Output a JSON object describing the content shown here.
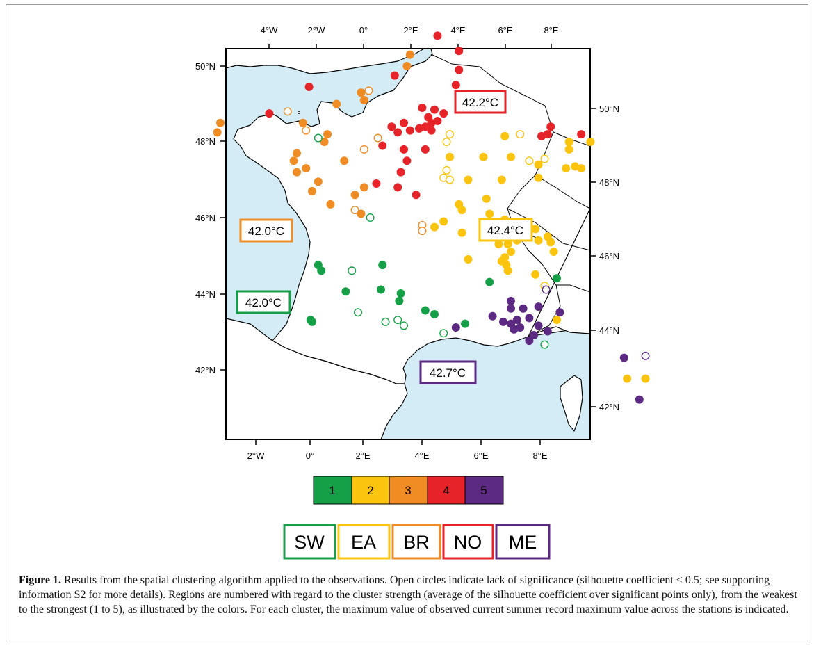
{
  "colors": {
    "cluster1": "#15a048",
    "cluster2": "#fbc40e",
    "cluster3": "#f08c24",
    "cluster4": "#e62329",
    "cluster5": "#5c2a82",
    "sea": "#d3ecf5",
    "land": "#ffffff"
  },
  "map": {
    "top_ticks": [
      "4°W",
      "2°W",
      "0°",
      "2°E",
      "4°E",
      "6°E",
      "8°E"
    ],
    "bottom_ticks": [
      "2°W",
      "0°",
      "2°E",
      "4°E",
      "6°E",
      "8°E"
    ],
    "left_ticks": [
      "50°N",
      "48°N",
      "46°N",
      "44°N",
      "42°N"
    ],
    "right_ticks": [
      "50°N",
      "48°N",
      "46°N",
      "44°N",
      "42°N"
    ]
  },
  "cluster_labels": [
    {
      "text": "42.2°C",
      "cluster": 4
    },
    {
      "text": "42.0°C",
      "cluster": 3
    },
    {
      "text": "42.4°C",
      "cluster": 2
    },
    {
      "text": "42.0°C",
      "cluster": 1
    },
    {
      "text": "42.7°C",
      "cluster": 5
    }
  ],
  "legend": {
    "numbers": [
      "1",
      "2",
      "3",
      "4",
      "5"
    ]
  },
  "regions": [
    {
      "code": "SW",
      "cluster": 1
    },
    {
      "code": "EA",
      "cluster": 2
    },
    {
      "code": "BR",
      "cluster": 3
    },
    {
      "code": "NO",
      "cluster": 4
    },
    {
      "code": "ME",
      "cluster": 5
    }
  ],
  "caption": {
    "label": "Figure 1.",
    "text": " Results from the spatial clustering algorithm applied to the observations. Open circles indicate lack of significance (silhouette coefficient < 0.5; see supporting information S2 for more details). Regions are numbered with regard to the cluster strength (average of the silhouette coefficient over significant points only), from the weakest to the strongest (1 to 5), as illustrated by the colors. For each cluster, the maximum value of observed current summer record maximum value across the stations is indicated."
  },
  "stations": [
    {
      "lon": 2.6,
      "lat": 51.0,
      "cluster": 4,
      "open": false
    },
    {
      "lon": 3.3,
      "lat": 50.6,
      "cluster": 4,
      "open": false
    },
    {
      "lon": 3.3,
      "lat": 50.1,
      "cluster": 4,
      "open": false
    },
    {
      "lon": 3.2,
      "lat": 49.7,
      "cluster": 4,
      "open": false
    },
    {
      "lon": 1.7,
      "lat": 50.5,
      "cluster": 3,
      "open": false
    },
    {
      "lon": 1.6,
      "lat": 50.2,
      "cluster": 3,
      "open": false
    },
    {
      "lon": 1.2,
      "lat": 49.95,
      "cluster": 4,
      "open": false
    },
    {
      "lon": -1.6,
      "lat": 49.65,
      "cluster": 4,
      "open": false
    },
    {
      "lon": 0.1,
      "lat": 49.5,
      "cluster": 3,
      "open": false
    },
    {
      "lon": 0.2,
      "lat": 49.3,
      "cluster": 3,
      "open": false
    },
    {
      "lon": 0.35,
      "lat": 49.55,
      "cluster": 3,
      "open": true
    },
    {
      "lon": -0.7,
      "lat": 49.2,
      "cluster": 3,
      "open": false
    },
    {
      "lon": -2.3,
      "lat": 49.0,
      "cluster": 3,
      "open": true
    },
    {
      "lon": -2.9,
      "lat": 48.95,
      "cluster": 4,
      "open": false
    },
    {
      "lon": -4.5,
      "lat": 48.7,
      "cluster": 3,
      "open": false
    },
    {
      "lon": -4.6,
      "lat": 48.45,
      "cluster": 3,
      "open": false
    },
    {
      "lon": -1.8,
      "lat": 48.7,
      "cluster": 3,
      "open": false
    },
    {
      "lon": -1.7,
      "lat": 48.5,
      "cluster": 3,
      "open": true
    },
    {
      "lon": 2.1,
      "lat": 49.1,
      "cluster": 4,
      "open": false
    },
    {
      "lon": 2.5,
      "lat": 49.05,
      "cluster": 4,
      "open": false
    },
    {
      "lon": 2.3,
      "lat": 48.85,
      "cluster": 4,
      "open": false
    },
    {
      "lon": 2.6,
      "lat": 48.75,
      "cluster": 4,
      "open": false
    },
    {
      "lon": 2.8,
      "lat": 48.95,
      "cluster": 4,
      "open": false
    },
    {
      "lon": 2.4,
      "lat": 48.7,
      "cluster": 4,
      "open": false
    },
    {
      "lon": 2.2,
      "lat": 48.6,
      "cluster": 4,
      "open": false
    },
    {
      "lon": 1.5,
      "lat": 48.7,
      "cluster": 4,
      "open": false
    },
    {
      "lon": 1.1,
      "lat": 48.6,
      "cluster": 4,
      "open": false
    },
    {
      "lon": 1.3,
      "lat": 48.45,
      "cluster": 4,
      "open": false
    },
    {
      "lon": 1.7,
      "lat": 48.5,
      "cluster": 4,
      "open": false
    },
    {
      "lon": 2.0,
      "lat": 48.55,
      "cluster": 4,
      "open": false
    },
    {
      "lon": 2.4,
      "lat": 48.5,
      "cluster": 4,
      "open": false
    },
    {
      "lon": 3.0,
      "lat": 48.4,
      "cluster": 2,
      "open": true
    },
    {
      "lon": 2.9,
      "lat": 48.2,
      "cluster": 2,
      "open": true
    },
    {
      "lon": 0.8,
      "lat": 48.1,
      "cluster": 4,
      "open": false
    },
    {
      "lon": 1.5,
      "lat": 48.0,
      "cluster": 4,
      "open": false
    },
    {
      "lon": 2.2,
      "lat": 48.0,
      "cluster": 4,
      "open": false
    },
    {
      "lon": 3.0,
      "lat": 47.8,
      "cluster": 2,
      "open": false
    },
    {
      "lon": 4.3,
      "lat": 49.3,
      "cluster": 4,
      "open": false
    },
    {
      "lon": 4.7,
      "lat": 49.35,
      "cluster": 4,
      "open": false
    },
    {
      "lon": 6.3,
      "lat": 48.6,
      "cluster": 4,
      "open": false
    },
    {
      "lon": 6.0,
      "lat": 48.35,
      "cluster": 4,
      "open": false
    },
    {
      "lon": 6.2,
      "lat": 48.4,
      "cluster": 4,
      "open": false
    },
    {
      "lon": 7.3,
      "lat": 48.4,
      "cluster": 4,
      "open": false
    },
    {
      "lon": 4.8,
      "lat": 48.35,
      "cluster": 2,
      "open": false
    },
    {
      "lon": 5.3,
      "lat": 48.4,
      "cluster": 2,
      "open": true
    },
    {
      "lon": 6.9,
      "lat": 48.2,
      "cluster": 2,
      "open": false
    },
    {
      "lon": 6.9,
      "lat": 48.0,
      "cluster": 2,
      "open": false
    },
    {
      "lon": 7.6,
      "lat": 48.2,
      "cluster": 2,
      "open": false
    },
    {
      "lon": 4.1,
      "lat": 47.8,
      "cluster": 2,
      "open": false
    },
    {
      "lon": 5.0,
      "lat": 47.8,
      "cluster": 2,
      "open": false
    },
    {
      "lon": 5.6,
      "lat": 47.7,
      "cluster": 2,
      "open": true
    },
    {
      "lon": 6.1,
      "lat": 47.75,
      "cluster": 2,
      "open": true
    },
    {
      "lon": 5.9,
      "lat": 47.6,
      "cluster": 2,
      "open": false
    },
    {
      "lon": 6.8,
      "lat": 47.5,
      "cluster": 2,
      "open": false
    },
    {
      "lon": 7.1,
      "lat": 47.55,
      "cluster": 2,
      "open": false
    },
    {
      "lon": 7.3,
      "lat": 47.5,
      "cluster": 2,
      "open": false
    },
    {
      "lon": 2.9,
      "lat": 47.45,
      "cluster": 2,
      "open": true
    },
    {
      "lon": 2.8,
      "lat": 47.25,
      "cluster": 2,
      "open": true
    },
    {
      "lon": 3.0,
      "lat": 47.2,
      "cluster": 2,
      "open": true
    },
    {
      "lon": 3.6,
      "lat": 47.2,
      "cluster": 2,
      "open": false
    },
    {
      "lon": 4.7,
      "lat": 47.2,
      "cluster": 2,
      "open": false
    },
    {
      "lon": 5.9,
      "lat": 47.25,
      "cluster": 2,
      "open": false
    },
    {
      "lon": 1.6,
      "lat": 47.7,
      "cluster": 4,
      "open": false
    },
    {
      "lon": 1.4,
      "lat": 47.4,
      "cluster": 4,
      "open": false
    },
    {
      "lon": 1.3,
      "lat": 47.0,
      "cluster": 4,
      "open": false
    },
    {
      "lon": 1.9,
      "lat": 46.8,
      "cluster": 4,
      "open": false
    },
    {
      "lon": 0.6,
      "lat": 47.1,
      "cluster": 4,
      "open": false
    },
    {
      "lon": 0.2,
      "lat": 47.0,
      "cluster": 3,
      "open": false
    },
    {
      "lon": -0.1,
      "lat": 46.8,
      "cluster": 3,
      "open": false
    },
    {
      "lon": -0.45,
      "lat": 47.7,
      "cluster": 3,
      "open": false
    },
    {
      "lon": 0.65,
      "lat": 48.3,
      "cluster": 3,
      "open": true
    },
    {
      "lon": 0.2,
      "lat": 48.0,
      "cluster": 3,
      "open": true
    },
    {
      "lon": -1.7,
      "lat": 47.5,
      "cluster": 3,
      "open": false
    },
    {
      "lon": -1.3,
      "lat": 47.15,
      "cluster": 3,
      "open": false
    },
    {
      "lon": -2.0,
      "lat": 47.9,
      "cluster": 3,
      "open": false
    },
    {
      "lon": -2.1,
      "lat": 47.7,
      "cluster": 3,
      "open": false
    },
    {
      "lon": -2.0,
      "lat": 47.4,
      "cluster": 3,
      "open": false
    },
    {
      "lon": -1.0,
      "lat": 48.4,
      "cluster": 3,
      "open": false
    },
    {
      "lon": -1.1,
      "lat": 48.2,
      "cluster": 3,
      "open": false
    },
    {
      "lon": -1.5,
      "lat": 46.9,
      "cluster": 3,
      "open": false
    },
    {
      "lon": -0.9,
      "lat": 46.55,
      "cluster": 3,
      "open": false
    },
    {
      "lon": -0.1,
      "lat": 46.4,
      "cluster": 3,
      "open": true
    },
    {
      "lon": 0.1,
      "lat": 46.3,
      "cluster": 3,
      "open": false
    },
    {
      "lon": 0.4,
      "lat": 46.2,
      "cluster": 1,
      "open": true
    },
    {
      "lon": 2.1,
      "lat": 46.0,
      "cluster": 3,
      "open": true
    },
    {
      "lon": 2.1,
      "lat": 45.85,
      "cluster": 3,
      "open": true
    },
    {
      "lon": 2.5,
      "lat": 45.95,
      "cluster": 2,
      "open": false
    },
    {
      "lon": 2.8,
      "lat": 46.1,
      "cluster": 2,
      "open": false
    },
    {
      "lon": 3.3,
      "lat": 46.55,
      "cluster": 2,
      "open": false
    },
    {
      "lon": 3.4,
      "lat": 46.4,
      "cluster": 2,
      "open": false
    },
    {
      "lon": 3.4,
      "lat": 45.8,
      "cluster": 2,
      "open": false
    },
    {
      "lon": 4.2,
      "lat": 46.7,
      "cluster": 2,
      "open": false
    },
    {
      "lon": 4.3,
      "lat": 46.3,
      "cluster": 2,
      "open": false
    },
    {
      "lon": 4.8,
      "lat": 46.15,
      "cluster": 2,
      "open": false
    },
    {
      "lon": 4.1,
      "lat": 45.7,
      "cluster": 2,
      "open": false
    },
    {
      "lon": 4.6,
      "lat": 45.5,
      "cluster": 2,
      "open": false
    },
    {
      "lon": 4.9,
      "lat": 45.5,
      "cluster": 2,
      "open": false
    },
    {
      "lon": 5.2,
      "lat": 45.6,
      "cluster": 2,
      "open": false
    },
    {
      "lon": 5.8,
      "lat": 45.9,
      "cluster": 2,
      "open": false
    },
    {
      "lon": 5.9,
      "lat": 45.6,
      "cluster": 2,
      "open": false
    },
    {
      "lon": 6.2,
      "lat": 45.7,
      "cluster": 2,
      "open": false
    },
    {
      "lon": 6.3,
      "lat": 45.55,
      "cluster": 2,
      "open": false
    },
    {
      "lon": 6.4,
      "lat": 45.3,
      "cluster": 2,
      "open": false
    },
    {
      "lon": 5.0,
      "lat": 45.3,
      "cluster": 2,
      "open": false
    },
    {
      "lon": 4.8,
      "lat": 45.15,
      "cluster": 2,
      "open": false
    },
    {
      "lon": 4.7,
      "lat": 45.05,
      "cluster": 2,
      "open": false
    },
    {
      "lon": 4.85,
      "lat": 44.95,
      "cluster": 2,
      "open": false
    },
    {
      "lon": 3.6,
      "lat": 45.1,
      "cluster": 2,
      "open": false
    },
    {
      "lon": 4.9,
      "lat": 44.8,
      "cluster": 2,
      "open": false
    },
    {
      "lon": 5.8,
      "lat": 44.7,
      "cluster": 2,
      "open": false
    },
    {
      "lon": 6.1,
      "lat": 44.4,
      "cluster": 2,
      "open": true
    },
    {
      "lon": 6.15,
      "lat": 44.3,
      "cluster": 5,
      "open": true
    },
    {
      "lon": 6.5,
      "lat": 44.6,
      "cluster": 1,
      "open": false
    },
    {
      "lon": 4.3,
      "lat": 44.5,
      "cluster": 1,
      "open": false
    },
    {
      "lon": 5.0,
      "lat": 44.0,
      "cluster": 5,
      "open": false
    },
    {
      "lon": 5.0,
      "lat": 43.8,
      "cluster": 5,
      "open": false
    },
    {
      "lon": 5.4,
      "lat": 43.8,
      "cluster": 5,
      "open": false
    },
    {
      "lon": 5.9,
      "lat": 43.85,
      "cluster": 5,
      "open": false
    },
    {
      "lon": 6.6,
      "lat": 43.7,
      "cluster": 5,
      "open": false
    },
    {
      "lon": 4.4,
      "lat": 43.6,
      "cluster": 5,
      "open": false
    },
    {
      "lon": 4.75,
      "lat": 43.45,
      "cluster": 5,
      "open": false
    },
    {
      "lon": 5.2,
      "lat": 43.5,
      "cluster": 5,
      "open": false
    },
    {
      "lon": 5.6,
      "lat": 43.55,
      "cluster": 5,
      "open": false
    },
    {
      "lon": 5.9,
      "lat": 43.35,
      "cluster": 5,
      "open": false
    },
    {
      "lon": 6.2,
      "lat": 43.2,
      "cluster": 5,
      "open": false
    },
    {
      "lon": 5.0,
      "lat": 43.4,
      "cluster": 5,
      "open": false
    },
    {
      "lon": 5.1,
      "lat": 43.25,
      "cluster": 5,
      "open": false
    },
    {
      "lon": 5.3,
      "lat": 43.3,
      "cluster": 5,
      "open": false
    },
    {
      "lon": 5.75,
      "lat": 43.1,
      "cluster": 5,
      "open": false
    },
    {
      "lon": 3.2,
      "lat": 43.3,
      "cluster": 5,
      "open": false
    },
    {
      "lon": 3.5,
      "lat": 43.4,
      "cluster": 1,
      "open": false
    },
    {
      "lon": 5.6,
      "lat": 42.95,
      "cluster": 5,
      "open": false
    },
    {
      "lon": 6.1,
      "lat": 42.85,
      "cluster": 1,
      "open": true
    },
    {
      "lon": 6.5,
      "lat": 43.5,
      "cluster": 2,
      "open": false
    },
    {
      "lon": 8.7,
      "lat": 42.5,
      "cluster": 5,
      "open": false
    },
    {
      "lon": 9.4,
      "lat": 42.55,
      "cluster": 5,
      "open": true
    },
    {
      "lon": 8.8,
      "lat": 41.95,
      "cluster": 2,
      "open": false
    },
    {
      "lon": 9.4,
      "lat": 41.95,
      "cluster": 2,
      "open": false
    },
    {
      "lon": 9.2,
      "lat": 41.4,
      "cluster": 5,
      "open": false
    },
    {
      "lon": -1.3,
      "lat": 44.95,
      "cluster": 1,
      "open": false
    },
    {
      "lon": -1.2,
      "lat": 44.8,
      "cluster": 1,
      "open": false
    },
    {
      "lon": -1.3,
      "lat": 48.3,
      "cluster": 1,
      "open": true
    },
    {
      "lon": -0.2,
      "lat": 44.8,
      "cluster": 1,
      "open": true
    },
    {
      "lon": 0.8,
      "lat": 44.95,
      "cluster": 1,
      "open": false
    },
    {
      "lon": 0.75,
      "lat": 44.3,
      "cluster": 1,
      "open": false
    },
    {
      "lon": 1.4,
      "lat": 44.2,
      "cluster": 1,
      "open": false
    },
    {
      "lon": 1.35,
      "lat": 44.0,
      "cluster": 1,
      "open": false
    },
    {
      "lon": -0.4,
      "lat": 44.25,
      "cluster": 1,
      "open": false
    },
    {
      "lon": 2.2,
      "lat": 43.75,
      "cluster": 1,
      "open": false
    },
    {
      "lon": 2.5,
      "lat": 43.65,
      "cluster": 1,
      "open": false
    },
    {
      "lon": -1.55,
      "lat": 43.5,
      "cluster": 1,
      "open": false
    },
    {
      "lon": -1.5,
      "lat": 43.45,
      "cluster": 1,
      "open": false
    },
    {
      "lon": 0.0,
      "lat": 43.7,
      "cluster": 1,
      "open": true
    },
    {
      "lon": 0.9,
      "lat": 43.45,
      "cluster": 1,
      "open": true
    },
    {
      "lon": 1.3,
      "lat": 43.5,
      "cluster": 1,
      "open": true
    },
    {
      "lon": 1.5,
      "lat": 43.35,
      "cluster": 1,
      "open": true
    },
    {
      "lon": 2.8,
      "lat": 43.15,
      "cluster": 1,
      "open": true
    }
  ]
}
